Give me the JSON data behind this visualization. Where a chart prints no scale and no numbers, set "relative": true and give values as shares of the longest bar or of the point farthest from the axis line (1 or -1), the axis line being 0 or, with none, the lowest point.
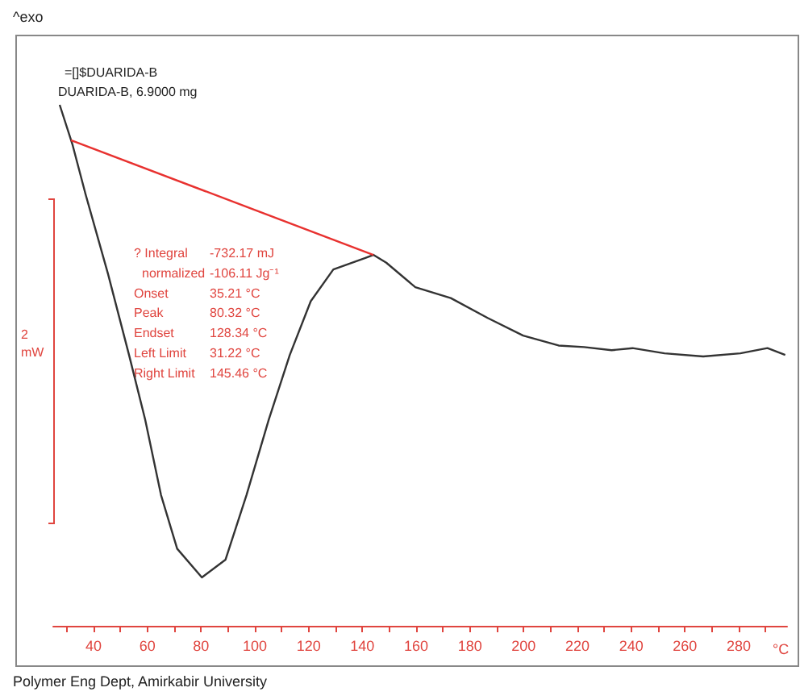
{
  "chart_data": {
    "type": "line",
    "relative": true,
    "xlabel": "°C",
    "xlim": [
      25,
      298
    ],
    "xticks": [
      {
        "value": 30,
        "label": null
      },
      40,
      {
        "value": 50,
        "label": null
      },
      60,
      {
        "value": 70,
        "label": null
      },
      80,
      {
        "value": 90,
        "label": null
      },
      100,
      {
        "value": 110,
        "label": null
      },
      120,
      {
        "value": 130,
        "label": null
      },
      140,
      {
        "value": 150,
        "label": null
      },
      160,
      {
        "value": 170,
        "label": null
      },
      180,
      {
        "value": 190,
        "label": null
      },
      200,
      {
        "value": 210,
        "label": null
      },
      220,
      {
        "value": 230,
        "label": null
      },
      240,
      {
        "value": 250,
        "label": null
      },
      260,
      {
        "value": 270,
        "label": null
      },
      280,
      {
        "value": 290,
        "label": null
      }
    ],
    "series": [
      {
        "color": "#333333",
        "x": [
          27.4,
          32.2,
          37.0,
          45.4,
          53.2,
          59.2,
          65.1,
          71.1,
          80.3,
          89.1,
          96.9,
          105.2,
          113.0,
          120.8,
          129.2,
          141.1,
          144.1,
          148.9,
          159.7,
          172.9,
          186.6,
          199.8,
          213.0,
          222.5,
          232.7,
          240.5,
          252.4,
          266.8,
          280.6,
          290.7,
          297.3
        ],
        "values": [
          1.0,
          0.923,
          0.829,
          0.675,
          0.52,
          0.396,
          0.251,
          0.148,
          0.093,
          0.127,
          0.251,
          0.396,
          0.52,
          0.623,
          0.684,
          0.706,
          0.712,
          0.697,
          0.65,
          0.629,
          0.591,
          0.557,
          0.538,
          0.535,
          0.529,
          0.533,
          0.523,
          0.517,
          0.523,
          0.533,
          0.52
        ]
      },
      {
        "color": "#e8312f",
        "x": [
          31.6,
          144.1
        ],
        "values": [
          0.932,
          0.712
        ]
      }
    ],
    "annotations": [
      "^exo",
      "=[]$DUARIDA-B",
      "DUARIDA-B, 6.9000 mg",
      "? Integral",
      "-732.17 mJ",
      "normalized",
      "-106.11 Jg⁻¹",
      "Onset",
      "35.21 °C",
      "Peak",
      "80.32 °C",
      "Endset",
      "128.34 °C",
      "Left Limit",
      "31.22 °C",
      "Right Limit",
      "145.46 °C",
      "2 mW",
      "Polymer Eng Dept, Amirkabir University"
    ],
    "marker": "none",
    "line_style": "solid"
  }
}
